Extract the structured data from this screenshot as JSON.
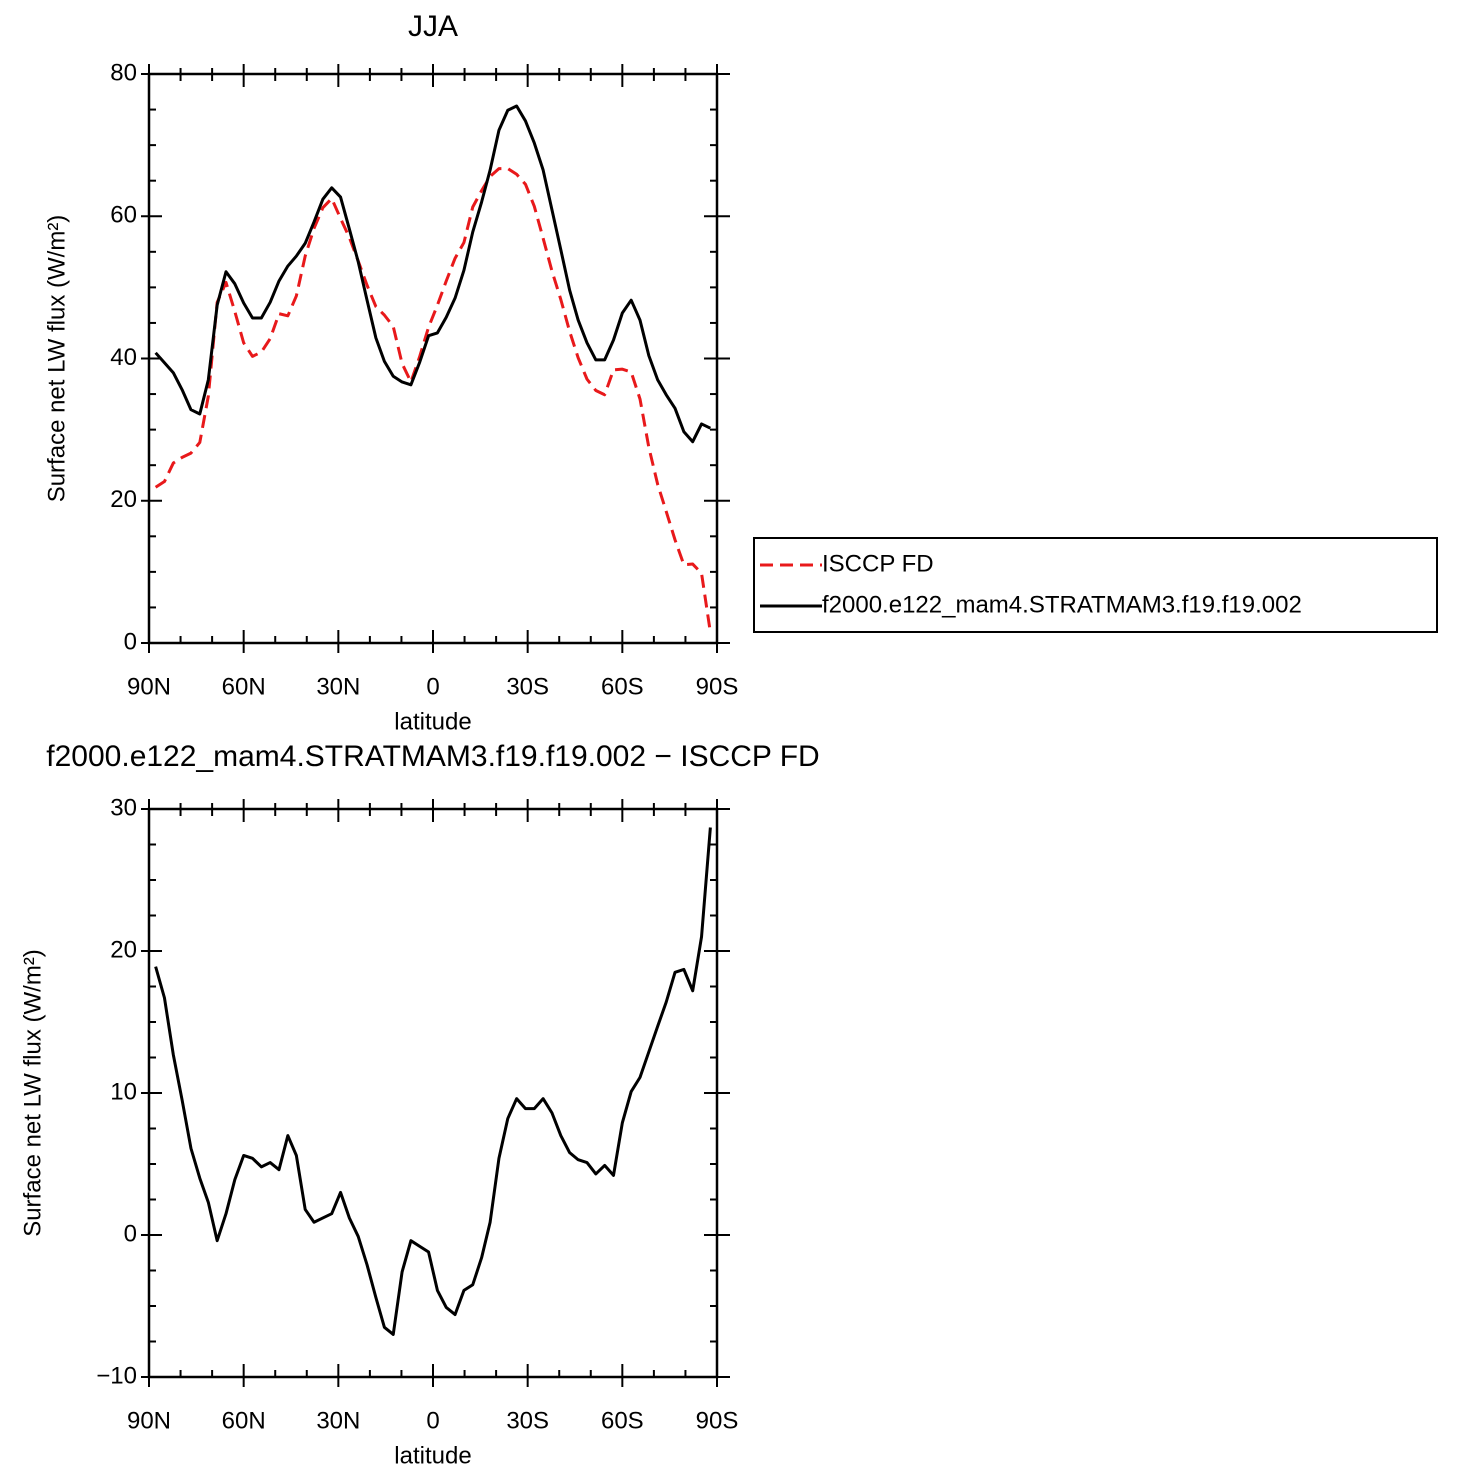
{
  "chart_data": [
    {
      "type": "line",
      "title": "JJA",
      "xlabel": "latitude",
      "ylabel": "Surface net LW flux (W/m²)",
      "x": [
        87.9,
        85.1,
        82.3,
        79.5,
        76.7,
        73.9,
        71.2,
        68.4,
        65.6,
        62.8,
        60.0,
        57.2,
        54.4,
        51.6,
        48.8,
        46.0,
        43.3,
        40.5,
        37.7,
        34.9,
        32.1,
        29.3,
        26.5,
        23.7,
        20.9,
        18.1,
        15.4,
        12.6,
        9.8,
        7.0,
        4.2,
        1.4,
        -1.4,
        -4.2,
        -7.0,
        -9.8,
        -12.6,
        -15.4,
        -18.1,
        -20.9,
        -23.7,
        -26.5,
        -29.3,
        -32.1,
        -34.9,
        -37.7,
        -40.5,
        -43.3,
        -46.0,
        -48.8,
        -51.6,
        -54.4,
        -57.2,
        -60.0,
        -62.8,
        -65.6,
        -68.4,
        -71.2,
        -73.9,
        -76.7,
        -79.5,
        -82.3,
        -85.1,
        -87.9
      ],
      "xlim": [
        90,
        -90
      ],
      "xticks": [
        {
          "value": 90,
          "label": "90N"
        },
        {
          "value": 60,
          "label": "60N"
        },
        {
          "value": 30,
          "label": "30N"
        },
        0,
        {
          "value": -30,
          "label": "30S"
        },
        {
          "value": -60,
          "label": "60S"
        },
        {
          "value": -90,
          "label": "90S"
        }
      ],
      "ylim": [
        0,
        80
      ],
      "yticks": [
        0,
        20,
        40,
        60,
        80
      ],
      "legend": "right",
      "series": [
        {
          "name": "ISCCP FD",
          "color": "#e8191b",
          "dash": "dashed",
          "values": [
            21.9,
            22.7,
            25.3,
            26.1,
            26.7,
            28.2,
            34.7,
            47.9,
            50.7,
            46.6,
            42.2,
            40.3,
            40.9,
            42.8,
            46.3,
            46.0,
            48.8,
            54.4,
            58.3,
            61.2,
            62.5,
            59.7,
            57.0,
            53.7,
            50.3,
            47.3,
            46.1,
            44.5,
            39.3,
            36.7,
            40.3,
            44.4,
            47.5,
            50.9,
            54.1,
            56.3,
            61.3,
            63.6,
            65.6,
            66.7,
            66.7,
            65.9,
            64.5,
            61.4,
            56.9,
            52.3,
            48.3,
            43.8,
            40.1,
            37.1,
            35.5,
            34.9,
            38.4,
            38.5,
            38.1,
            34.3,
            27.5,
            22.3,
            18.5,
            14.5,
            11.0,
            11.1,
            9.8,
            1.5
          ]
        },
        {
          "name": "f2000.e122_mam4.STRATMAM3.f19.f19.002",
          "color": "#000000",
          "dash": "solid",
          "values": [
            40.8,
            39.4,
            38.0,
            35.6,
            32.8,
            32.2,
            37.0,
            47.5,
            52.2,
            50.5,
            47.8,
            45.7,
            45.7,
            47.9,
            50.9,
            53.0,
            54.4,
            56.2,
            59.2,
            62.4,
            64.0,
            62.7,
            58.2,
            53.6,
            48.2,
            42.9,
            39.6,
            37.5,
            36.7,
            36.3,
            39.5,
            43.2,
            43.6,
            45.8,
            48.5,
            52.4,
            57.8,
            62.0,
            66.5,
            72.1,
            74.9,
            75.5,
            73.4,
            70.3,
            66.5,
            60.9,
            55.3,
            49.6,
            45.4,
            42.2,
            39.8,
            39.8,
            42.6,
            46.4,
            48.2,
            45.4,
            40.4,
            37.0,
            34.9,
            33.0,
            29.7,
            28.3,
            30.8,
            30.2
          ]
        }
      ]
    },
    {
      "type": "line",
      "title": "f2000.e122_mam4.STRATMAM3.f19.f19.002 − ISCCP FD",
      "xlabel": "latitude",
      "ylabel": "Surface net LW flux (W/m²)",
      "x": [
        87.9,
        85.1,
        82.3,
        79.5,
        76.7,
        73.9,
        71.2,
        68.4,
        65.6,
        62.8,
        60.0,
        57.2,
        54.4,
        51.6,
        48.8,
        46.0,
        43.3,
        40.5,
        37.7,
        34.9,
        32.1,
        29.3,
        26.5,
        23.7,
        20.9,
        18.1,
        15.4,
        12.6,
        9.8,
        7.0,
        4.2,
        1.4,
        -1.4,
        -4.2,
        -7.0,
        -9.8,
        -12.6,
        -15.4,
        -18.1,
        -20.9,
        -23.7,
        -26.5,
        -29.3,
        -32.1,
        -34.9,
        -37.7,
        -40.5,
        -43.3,
        -46.0,
        -48.8,
        -51.6,
        -54.4,
        -57.2,
        -60.0,
        -62.8,
        -65.6,
        -68.4,
        -71.2,
        -73.9,
        -76.7,
        -79.5,
        -82.3,
        -85.1,
        -87.9
      ],
      "xlim": [
        90,
        -90
      ],
      "xticks": [
        {
          "value": 90,
          "label": "90N"
        },
        {
          "value": 60,
          "label": "60N"
        },
        {
          "value": 30,
          "label": "30N"
        },
        0,
        {
          "value": -30,
          "label": "30S"
        },
        {
          "value": -60,
          "label": "60S"
        },
        {
          "value": -90,
          "label": "90S"
        }
      ],
      "ylim": [
        -10,
        30
      ],
      "yticks": [
        {
          "value": -10,
          "label": "−10"
        },
        0,
        10,
        20,
        30
      ],
      "series": [
        {
          "color": "#000000",
          "dash": "solid",
          "values": [
            18.9,
            16.7,
            12.7,
            9.5,
            6.1,
            4.0,
            2.3,
            -0.4,
            1.5,
            3.9,
            5.6,
            5.4,
            4.8,
            5.1,
            4.6,
            7.0,
            5.6,
            1.8,
            0.9,
            1.2,
            1.5,
            3.0,
            1.2,
            -0.1,
            -2.1,
            -4.4,
            -6.5,
            -7.0,
            -2.6,
            -0.4,
            -0.8,
            -1.2,
            -3.9,
            -5.1,
            -5.6,
            -3.9,
            -3.5,
            -1.6,
            0.9,
            5.4,
            8.2,
            9.6,
            8.9,
            8.9,
            9.6,
            8.6,
            7.0,
            5.8,
            5.3,
            5.1,
            4.3,
            4.9,
            4.2,
            7.9,
            10.1,
            11.1,
            12.9,
            14.7,
            16.4,
            18.5,
            18.7,
            17.2,
            21.0,
            28.7
          ]
        }
      ]
    }
  ]
}
